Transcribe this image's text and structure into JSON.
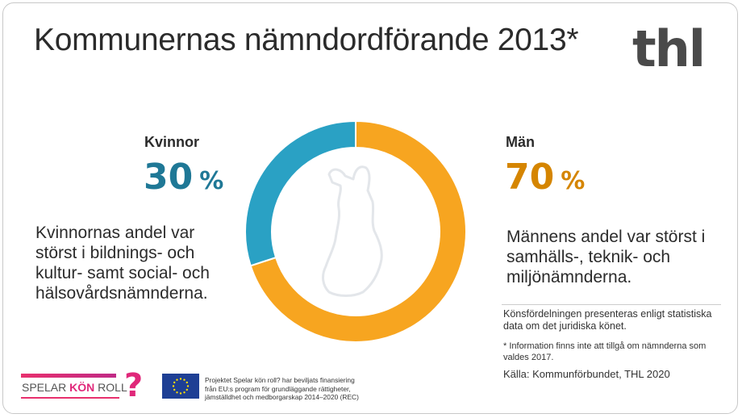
{
  "title": "Kommunernas nämndordförande 2013*",
  "logo": "thl",
  "women": {
    "label": "Kvinnor",
    "value": "30",
    "unit": "%",
    "description_lines": [
      "Kvinnornas andel var",
      "störst i bildnings- och",
      "kultur- samt social- och",
      "hälsovårdsnämnderna."
    ]
  },
  "men": {
    "label": "Män",
    "value": "70",
    "unit": "%",
    "description_lines": [
      "Männens andel var störst i",
      "samhälls-, teknik- och",
      "miljönämnderna."
    ]
  },
  "chart_data": {
    "type": "pie",
    "donut": true,
    "categories": [
      "Kvinnor",
      "Män"
    ],
    "values": [
      30,
      70
    ],
    "colors": [
      "#2aa1c4",
      "#f7a520"
    ]
  },
  "colors": {
    "women_text": "#1f7896",
    "men_text": "#d58500"
  },
  "notes": {
    "gender_note": "Könsfördelningen presenteras enligt statistiska data om det juridiska könet.",
    "footnote": "* Information finns inte att tillgå om nämnderna som valdes 2017.",
    "source": "Källa:  Kommunförbundet, THL 2020"
  },
  "footer": {
    "project_logo": {
      "word1": "SPELAR",
      "word2": "KÖN",
      "word3": "ROLL",
      "mark": "?"
    },
    "eu_text_lines": [
      "Projektet Spelar kön roll? har beviljats finansiering",
      "från EU:s program för grundläggande rättigheter,",
      "jämställdhet och medborgarskap 2014–2020 (REC)"
    ]
  }
}
